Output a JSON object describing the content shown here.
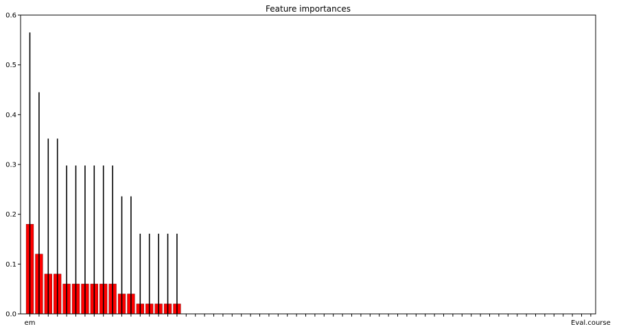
{
  "chart_data": {
    "type": "bar",
    "title": "Feature importances",
    "xlabel": "",
    "ylabel": "",
    "ylim": [
      0,
      0.6
    ],
    "yticks": [
      0.0,
      0.1,
      0.2,
      0.3,
      0.4,
      0.5,
      0.6
    ],
    "ytick_labels": [
      "0.0",
      "0.1",
      "0.2",
      "0.3",
      "0.4",
      "0.5",
      "0.6"
    ],
    "grid": false,
    "legend": "none",
    "bar_color": "#ff0000",
    "error_color": "#000000",
    "num_bars": 62,
    "values": [
      0.18,
      0.12,
      0.08,
      0.08,
      0.06,
      0.06,
      0.06,
      0.06,
      0.06,
      0.06,
      0.04,
      0.04,
      0.02,
      0.02,
      0.02,
      0.02,
      0.02
    ],
    "errors": [
      0.385,
      0.325,
      0.272,
      0.272,
      0.238,
      0.238,
      0.238,
      0.238,
      0.238,
      0.238,
      0.196,
      0.196,
      0.141,
      0.141,
      0.141,
      0.141,
      0.141
    ],
    "first_category_label": "em",
    "last_category_label": "Eval.course"
  }
}
